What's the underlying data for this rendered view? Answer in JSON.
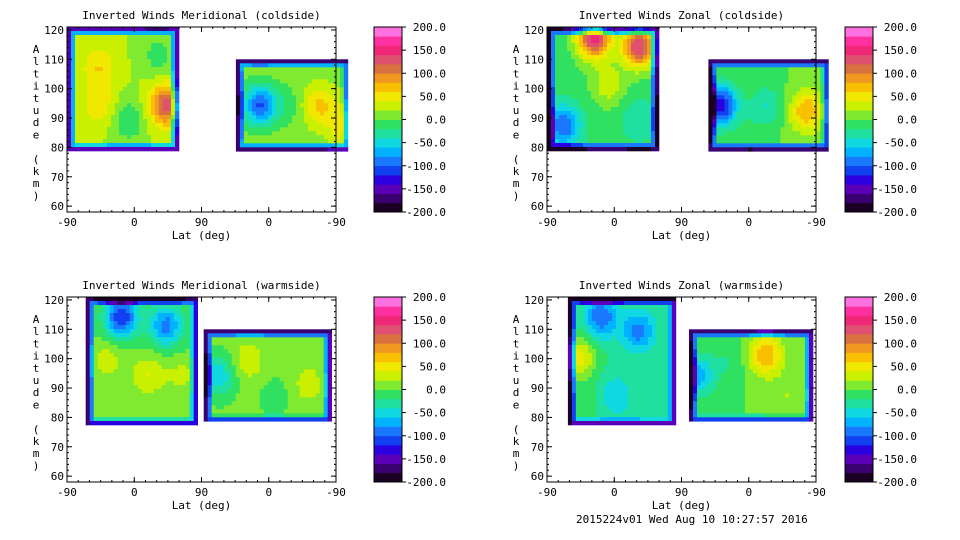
{
  "footer": "2015224v01 Wed Aug 10 10:27:57 2016",
  "colorbar": {
    "ticks": [
      "200.0",
      "150.0",
      "100.0",
      "50.0",
      "0.0",
      "-50.0",
      "-100.0",
      "-150.0",
      "-200.0"
    ],
    "colors": [
      "#1a0022",
      "#3a0070",
      "#5a00b8",
      "#2a00e0",
      "#1040f0",
      "#1a78ff",
      "#00b2ff",
      "#10d8e0",
      "#20e0a0",
      "#30e060",
      "#80ea30",
      "#c8f000",
      "#f0e800",
      "#f8c000",
      "#f09820",
      "#d87040",
      "#e05070",
      "#f02878",
      "#ff30a0",
      "#ff70e0"
    ]
  },
  "chart_data": [
    {
      "type": "heatmap",
      "title": "Inverted Winds Meridional (coldside)",
      "xlabel": "Lat (deg)",
      "ylabel": "Altitude (km)",
      "xticks": [
        "-90",
        "0",
        "90",
        "0",
        "-90"
      ],
      "yticks": [
        "60",
        "70",
        "80",
        "90",
        "100",
        "110",
        "120"
      ],
      "ylim": [
        58,
        121
      ],
      "value_range": [
        -200,
        200
      ],
      "blocks": [
        {
          "xrange": [
            -90,
            55
          ],
          "yrange": [
            80,
            121
          ],
          "base": 10,
          "hotspots": [
            [
              -50,
              108,
              40
            ],
            [
              -50,
              95,
              35
            ],
            [
              -10,
              90,
              -40
            ],
            [
              40,
              95,
              110
            ],
            [
              30,
              112,
              -30
            ]
          ]
        },
        {
          "xrange": [
            136,
            285
          ],
          "yrange": [
            80,
            110
          ],
          "base": 0,
          "hotspots": [
            [
              245,
              95,
              55
            ],
            [
              165,
              95,
              -110
            ],
            [
              280,
              88,
              50
            ],
            [
              200,
              95,
              -20
            ]
          ]
        }
      ]
    },
    {
      "type": "heatmap",
      "title": "Inverted Winds Zonal (coldside)",
      "xlabel": "Lat (deg)",
      "ylabel": "Altitude (km)",
      "xticks": [
        "-90",
        "0",
        "90",
        "0",
        "-90"
      ],
      "yticks": [
        "60",
        "70",
        "80",
        "90",
        "100",
        "110",
        "120"
      ],
      "ylim": [
        58,
        121
      ],
      "value_range": [
        -200,
        200
      ],
      "blocks": [
        {
          "xrange": [
            -90,
            55
          ],
          "yrange": [
            80,
            121
          ],
          "base": -20,
          "hotspots": [
            [
              -30,
              118,
              160
            ],
            [
              30,
              115,
              150
            ],
            [
              -10,
              102,
              45
            ],
            [
              -70,
              88,
              -90
            ],
            [
              30,
              90,
              -30
            ]
          ]
        },
        {
          "xrange": [
            126,
            285
          ],
          "yrange": [
            80,
            110
          ],
          "base": -10,
          "hotspots": [
            [
              255,
              93,
              80
            ],
            [
              140,
              95,
              -130
            ],
            [
              200,
              95,
              -40
            ],
            [
              180,
              85,
              -10
            ]
          ]
        }
      ]
    },
    {
      "type": "heatmap",
      "title": "Inverted Winds Meridional (warmside)",
      "xlabel": "Lat (deg)",
      "ylabel": "Altitude (km)",
      "xticks": [
        "-90",
        "0",
        "90",
        "0",
        "-90"
      ],
      "yticks": [
        "60",
        "70",
        "80",
        "90",
        "100",
        "110",
        "120"
      ],
      "ylim": [
        58,
        121
      ],
      "value_range": [
        -200,
        200
      ],
      "blocks": [
        {
          "xrange": [
            -65,
            82
          ],
          "yrange": [
            78,
            121
          ],
          "base": -10,
          "hotspots": [
            [
              -40,
              100,
              30
            ],
            [
              15,
              95,
              40
            ],
            [
              -20,
              115,
              -120
            ],
            [
              40,
              112,
              -90
            ],
            [
              60,
              95,
              25
            ]
          ]
        },
        {
          "xrange": [
            93,
            260
          ],
          "yrange": [
            79,
            110
          ],
          "base": -5,
          "hotspots": [
            [
              150,
              100,
              30
            ],
            [
              230,
              92,
              25
            ],
            [
              185,
              88,
              -15
            ],
            [
              110,
              95,
              -60
            ]
          ]
        }
      ]
    },
    {
      "type": "heatmap",
      "title": "Inverted Winds Zonal (warmside)",
      "xlabel": "Lat (deg)",
      "ylabel": "Altitude (km)",
      "xticks": [
        "-90",
        "0",
        "90",
        "0",
        "-90"
      ],
      "yticks": [
        "60",
        "70",
        "80",
        "90",
        "100",
        "110",
        "120"
      ],
      "ylim": [
        58,
        121
      ],
      "value_range": [
        -200,
        200
      ],
      "blocks": [
        {
          "xrange": [
            -62,
            80
          ],
          "yrange": [
            78,
            121
          ],
          "base": -30,
          "hotspots": [
            [
              -50,
              101,
              70
            ],
            [
              -20,
              115,
              -80
            ],
            [
              30,
              110,
              -70
            ],
            [
              0,
              88,
              -40
            ],
            [
              -40,
              85,
              10
            ]
          ]
        },
        {
          "xrange": [
            100,
            262
          ],
          "yrange": [
            79,
            110
          ],
          "base": -10,
          "hotspots": [
            [
              200,
              102,
              80
            ],
            [
              150,
              100,
              -20
            ],
            [
              230,
              88,
              20
            ],
            [
              110,
              95,
              -70
            ]
          ]
        }
      ]
    }
  ]
}
